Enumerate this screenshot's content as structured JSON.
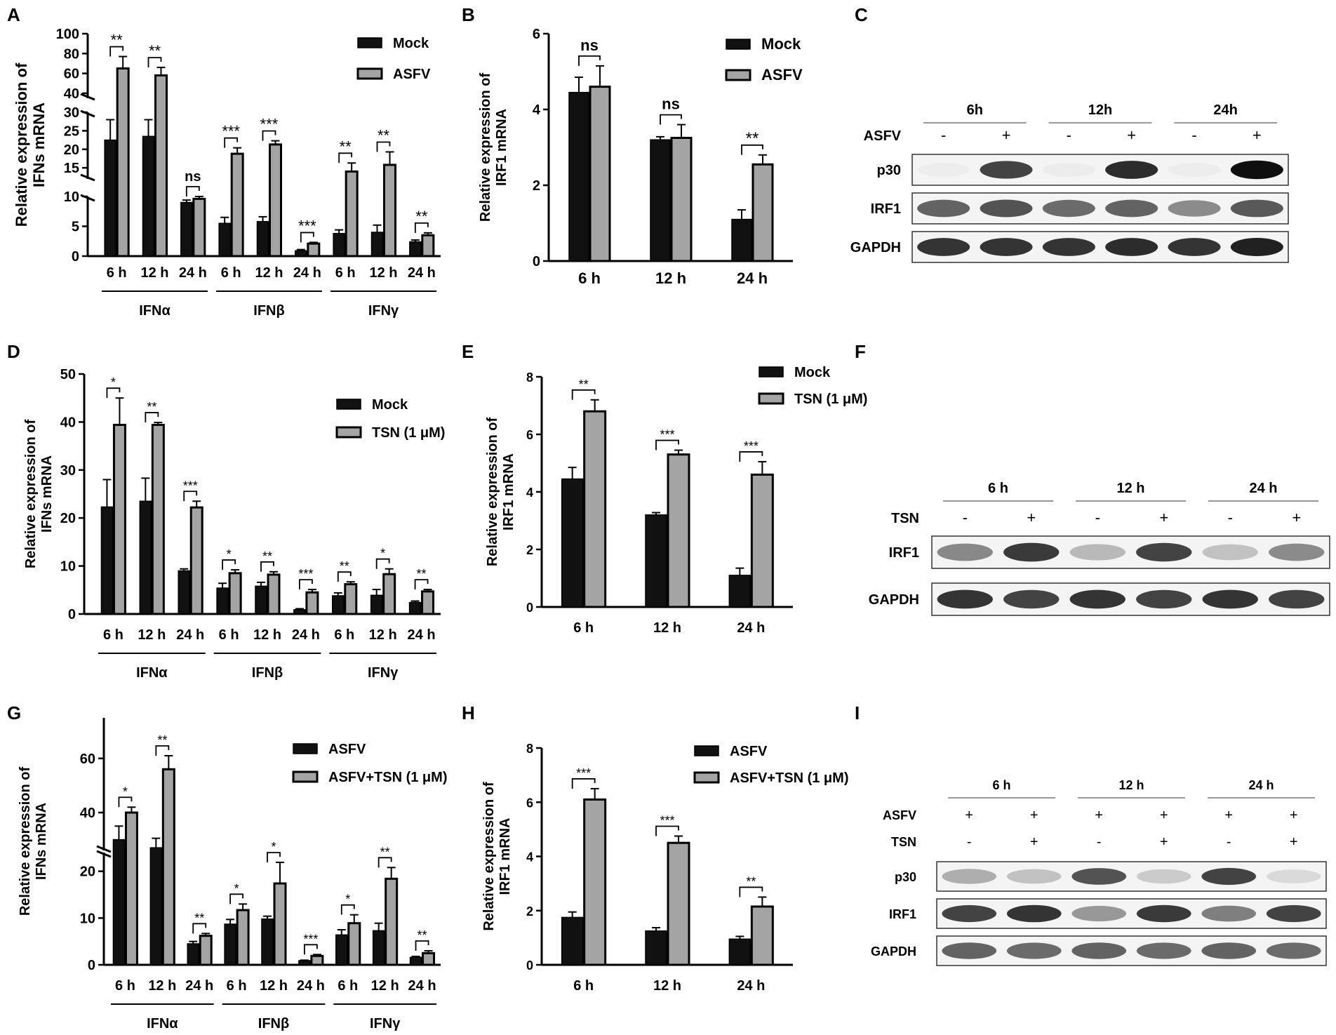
{
  "panel_letters": [
    "A",
    "B",
    "C",
    "D",
    "E",
    "F",
    "G",
    "H",
    "I"
  ],
  "chart_data": [
    {
      "panel": "A",
      "type": "bar",
      "ylabel": "Relative expression of IFNs mRNA",
      "categories": [
        "6 h",
        "12 h",
        "24 h",
        "6 h",
        "12 h",
        "24 h",
        "6 h",
        "12 h",
        "24 h"
      ],
      "groups": [
        "IFNα",
        "IFNβ",
        "IFNγ"
      ],
      "series": [
        {
          "name": "Mock",
          "values": [
            22.5,
            23.5,
            9.0,
            5.5,
            5.8,
            0.9,
            3.8,
            4.0,
            2.4
          ],
          "errors": [
            5.5,
            4.5,
            0.4,
            1.0,
            0.8,
            0.2,
            0.6,
            1.2,
            0.3
          ]
        },
        {
          "name": "ASFV",
          "values": [
            65,
            58,
            9.6,
            18.8,
            21.3,
            2.1,
            14,
            15.8,
            3.5
          ],
          "errors": [
            12,
            8,
            0.8,
            1.6,
            1.0,
            0.2,
            2.3,
            3.5,
            0.4
          ]
        }
      ],
      "significance": [
        "**",
        "**",
        "ns",
        "***",
        "***",
        "***",
        "**",
        "**",
        "**"
      ],
      "y_axis_segments": [
        {
          "range": [
            0,
            10
          ],
          "ticks": [
            0,
            5,
            10
          ]
        },
        {
          "range": [
            12,
            30
          ],
          "ticks": [
            15,
            20,
            25,
            30
          ]
        },
        {
          "range": [
            35,
            100
          ],
          "ticks": [
            40,
            60,
            80,
            100
          ]
        }
      ]
    },
    {
      "panel": "B",
      "type": "bar",
      "ylabel": "Relative expression of IRF1 mRNA",
      "categories": [
        "6 h",
        "12 h",
        "24 h"
      ],
      "series": [
        {
          "name": "Mock",
          "values": [
            4.45,
            3.2,
            1.1
          ],
          "errors": [
            0.4,
            0.08,
            0.25
          ]
        },
        {
          "name": "ASFV",
          "values": [
            4.6,
            3.25,
            2.55
          ],
          "errors": [
            0.55,
            0.35,
            0.25
          ]
        }
      ],
      "significance": [
        "ns",
        "ns",
        "**"
      ],
      "ylim": [
        0,
        6
      ],
      "yticks": [
        0,
        2,
        4,
        6
      ]
    },
    {
      "panel": "D",
      "type": "bar",
      "ylabel": "Relative expression of IFNs mRNA",
      "categories": [
        "6 h",
        "12 h",
        "24 h",
        "6 h",
        "12 h",
        "24 h",
        "6 h",
        "12 h",
        "24 h"
      ],
      "groups": [
        "IFNα",
        "IFNβ",
        "IFNγ"
      ],
      "series": [
        {
          "name": "Mock",
          "values": [
            22.3,
            23.5,
            9.0,
            5.4,
            5.8,
            0.9,
            3.8,
            3.9,
            2.4
          ],
          "errors": [
            5.7,
            4.8,
            0.4,
            1.0,
            0.8,
            0.2,
            0.6,
            1.2,
            0.3
          ]
        },
        {
          "name": "TSN (1 μM)",
          "values": [
            39.4,
            39.4,
            22.2,
            8.5,
            8.2,
            4.5,
            6.2,
            8.3,
            4.7
          ],
          "errors": [
            5.6,
            0.5,
            1.3,
            0.7,
            0.6,
            0.6,
            0.5,
            1.1,
            0.4
          ]
        }
      ],
      "significance": [
        "*",
        "**",
        "***",
        "*",
        "**",
        "***",
        "**",
        "*",
        "**"
      ],
      "ylim": [
        0,
        50
      ],
      "yticks": [
        0,
        10,
        20,
        30,
        40,
        50
      ]
    },
    {
      "panel": "E",
      "type": "bar",
      "ylabel": "Relative expression of IRF1 mRNA",
      "categories": [
        "6 h",
        "12 h",
        "24 h"
      ],
      "series": [
        {
          "name": "Mock",
          "values": [
            4.45,
            3.2,
            1.1
          ],
          "errors": [
            0.4,
            0.08,
            0.25
          ]
        },
        {
          "name": "TSN (1 μM)",
          "values": [
            6.8,
            5.3,
            4.6
          ],
          "errors": [
            0.4,
            0.15,
            0.45
          ]
        }
      ],
      "significance": [
        "**",
        "***",
        "***"
      ],
      "ylim": [
        0,
        8
      ],
      "yticks": [
        0,
        2,
        4,
        6,
        8
      ]
    },
    {
      "panel": "G",
      "type": "bar",
      "ylabel": "Relative expression of IFNs mRNA",
      "categories": [
        "6 h",
        "12 h",
        "24 h",
        "6 h",
        "12 h",
        "24 h",
        "6 h",
        "12 h",
        "24 h"
      ],
      "groups": [
        "IFNα",
        "IFNβ",
        "IFNγ"
      ],
      "series": [
        {
          "name": "ASFV",
          "values": [
            30,
            27,
            4.5,
            8.7,
            9.8,
            0.9,
            6.4,
            7.3,
            1.6
          ],
          "errors": [
            5,
            3.5,
            0.5,
            1.0,
            0.6,
            0.1,
            1.1,
            1.6,
            0.2
          ]
        },
        {
          "name": "ASFV+TSN (1 μM)",
          "values": [
            40,
            56,
            6.2,
            11.7,
            17.4,
            1.9,
            8.9,
            18.4,
            2.5
          ],
          "errors": [
            2,
            5,
            0.5,
            1.3,
            4.5,
            0.3,
            1.8,
            2.4,
            0.5
          ]
        }
      ],
      "significance": [
        "*",
        "**",
        "**",
        "*",
        "*",
        "***",
        "*",
        "**",
        "**"
      ],
      "y_axis_segments": [
        {
          "range": [
            0,
            24
          ],
          "ticks": [
            0,
            10,
            20
          ]
        },
        {
          "range": [
            26,
            75
          ],
          "ticks": [
            40,
            60
          ]
        }
      ]
    },
    {
      "panel": "H",
      "type": "bar",
      "ylabel": "Relative expression of IRF1 mRNA",
      "categories": [
        "6 h",
        "12 h",
        "24 h"
      ],
      "series": [
        {
          "name": "ASFV",
          "values": [
            1.75,
            1.25,
            0.95
          ],
          "errors": [
            0.2,
            0.12,
            0.1
          ]
        },
        {
          "name": "ASFV+TSN (1 μM)",
          "values": [
            6.1,
            4.5,
            2.15
          ],
          "errors": [
            0.4,
            0.25,
            0.35
          ]
        }
      ],
      "significance": [
        "***",
        "***",
        "**"
      ],
      "ylim": [
        0,
        8
      ],
      "yticks": [
        0,
        2,
        4,
        6,
        8
      ]
    }
  ],
  "blots": [
    {
      "panel": "C",
      "timepoints": [
        "6h",
        "12h",
        "24h"
      ],
      "treatment_rows": [
        {
          "label": "ASFV",
          "signs": [
            "-",
            "+",
            "-",
            "+",
            "-",
            "+"
          ]
        }
      ],
      "bands": [
        {
          "label": "p30",
          "intensity": [
            0.04,
            0.85,
            0.05,
            0.92,
            0.04,
            1.0
          ]
        },
        {
          "label": "IRF1",
          "intensity": [
            0.75,
            0.8,
            0.72,
            0.75,
            0.6,
            0.78
          ]
        },
        {
          "label": "GAPDH",
          "intensity": [
            0.9,
            0.9,
            0.9,
            0.92,
            0.9,
            0.95
          ]
        }
      ]
    },
    {
      "panel": "F",
      "timepoints": [
        "6 h",
        "12 h",
        "24 h"
      ],
      "treatment_rows": [
        {
          "label": "TSN",
          "signs": [
            "-",
            "+",
            "-",
            "+",
            "-",
            "+"
          ]
        }
      ],
      "bands": [
        {
          "label": "IRF1",
          "intensity": [
            0.62,
            0.88,
            0.4,
            0.85,
            0.35,
            0.6
          ]
        },
        {
          "label": "GAPDH",
          "intensity": [
            0.9,
            0.85,
            0.9,
            0.85,
            0.9,
            0.85
          ]
        }
      ]
    },
    {
      "panel": "I",
      "timepoints": [
        "6 h",
        "12 h",
        "24 h"
      ],
      "treatment_rows": [
        {
          "label": "ASFV",
          "signs": [
            "+",
            "+",
            "+",
            "+",
            "+",
            "+"
          ]
        },
        {
          "label": "TSN",
          "signs": [
            "-",
            "+",
            "-",
            "+",
            "-",
            "+"
          ]
        }
      ],
      "bands": [
        {
          "label": "p30",
          "intensity": [
            0.45,
            0.35,
            0.8,
            0.3,
            0.85,
            0.2
          ]
        },
        {
          "label": "IRF1",
          "intensity": [
            0.85,
            0.9,
            0.55,
            0.88,
            0.65,
            0.85
          ]
        },
        {
          "label": "GAPDH",
          "intensity": [
            0.75,
            0.72,
            0.75,
            0.72,
            0.75,
            0.72
          ]
        }
      ]
    }
  ],
  "colors": {
    "series_a": "#111111",
    "series_b": "#a4a4a4",
    "stroke": "#000000"
  }
}
